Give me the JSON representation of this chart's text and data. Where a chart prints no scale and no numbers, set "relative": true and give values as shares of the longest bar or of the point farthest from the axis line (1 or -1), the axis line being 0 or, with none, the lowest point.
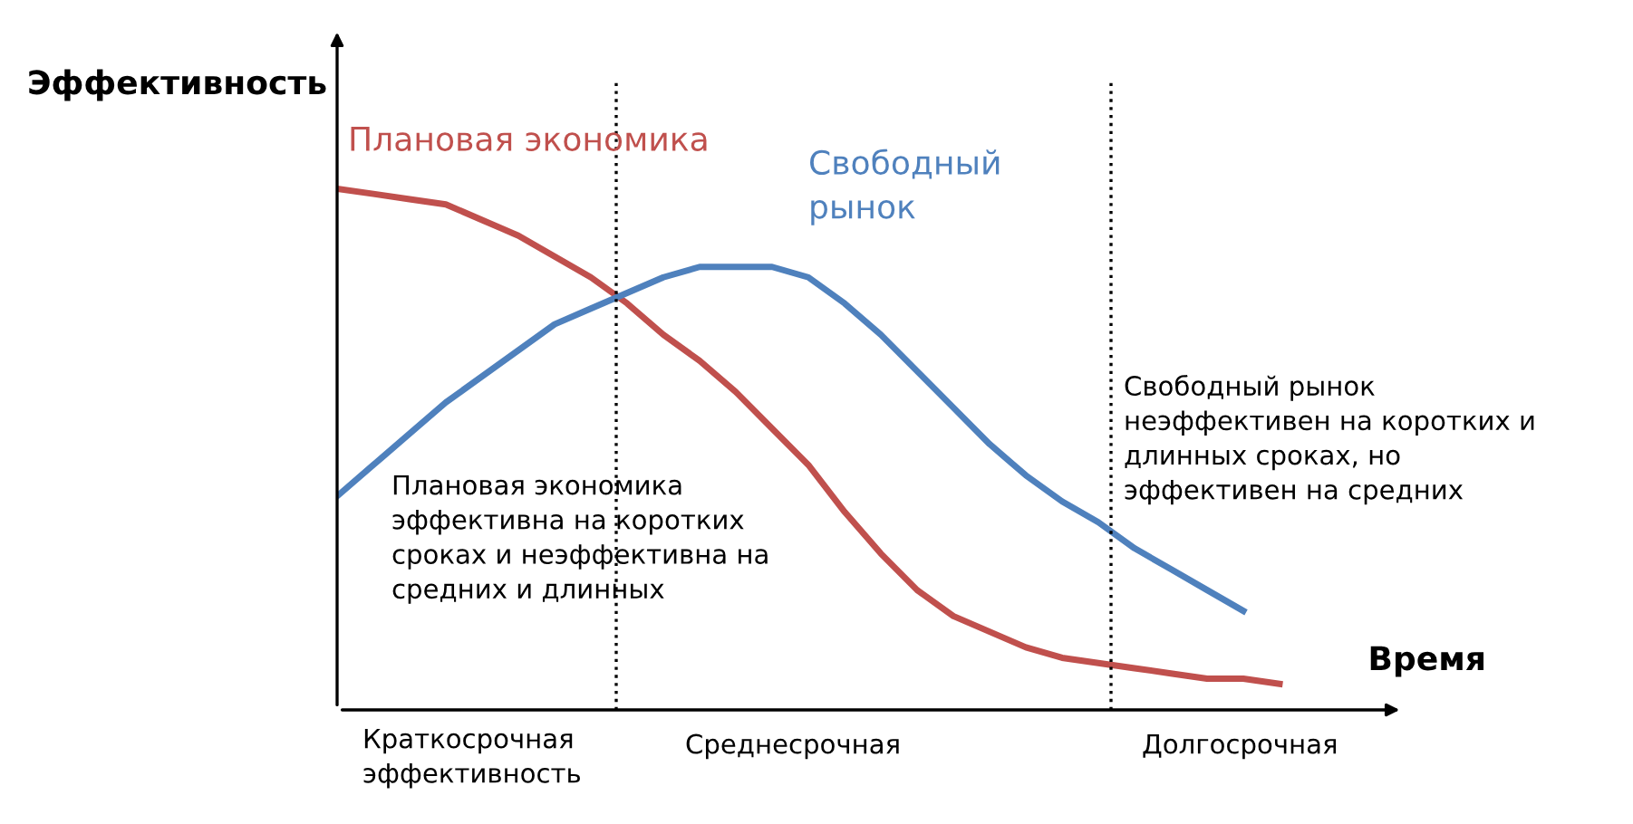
{
  "chart_data": {
    "type": "line",
    "relative": true,
    "ylabel": "Эффективность",
    "xlabel": "Время",
    "legend": false,
    "marker": "none",
    "line_style": "solid",
    "categories": [
      null,
      null,
      null,
      null,
      null,
      null,
      null,
      null,
      null,
      null,
      null,
      null,
      null,
      null,
      null,
      null,
      null,
      null,
      null,
      null,
      null,
      null,
      null,
      null,
      null,
      null,
      null
    ],
    "series": [
      {
        "name": "Плановая экономика",
        "color": "#c0504d",
        "values": [
          1.0,
          0.99,
          0.98,
          0.97,
          0.94,
          0.91,
          0.87,
          0.83,
          0.78,
          0.72,
          0.67,
          0.61,
          0.54,
          0.47,
          0.38,
          0.3,
          0.23,
          0.18,
          0.15,
          0.12,
          0.1,
          0.09,
          0.08,
          0.07,
          0.06,
          0.06,
          0.05
        ]
      },
      {
        "name": "Свободный\nрынок",
        "color": "#4f81bd",
        "values": [
          0.41,
          0.47,
          0.53,
          0.59,
          0.64,
          0.69,
          0.74,
          0.77,
          0.8,
          0.83,
          0.85,
          0.85,
          0.85,
          0.83,
          0.78,
          0.72,
          0.65,
          0.58,
          0.51,
          0.45,
          0.4,
          0.36,
          0.31,
          0.27,
          0.23,
          0.19,
          null
        ]
      }
    ],
    "annotations": [
      "Плановая экономика\nэффективна на коротких\nсроках и неэффективна на\nсредних и длинных",
      "Свободный рынок\nнеэффективен на коротких и\nдлинных сроках, но\nэффективен на средних",
      "Краткосрочная\nэффективность",
      "Среднесрочная",
      "Долгосрочная"
    ]
  }
}
